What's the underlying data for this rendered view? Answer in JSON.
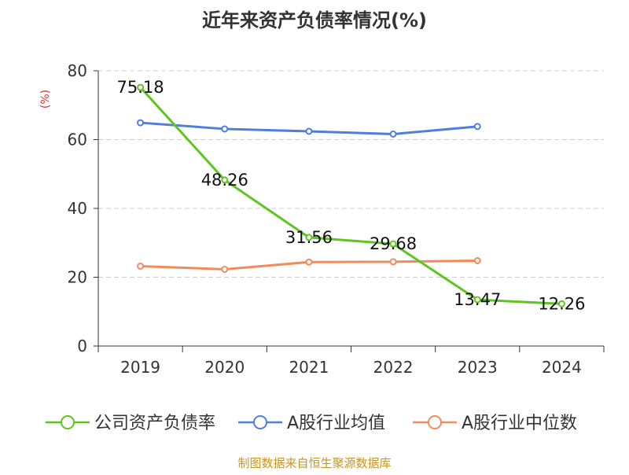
{
  "chart_data": {
    "type": "line",
    "title": "近年来资产负债率情况(%)",
    "ylabel": "(%)",
    "xlabel": "",
    "categories": [
      "2019",
      "2020",
      "2021",
      "2022",
      "2023",
      "2024"
    ],
    "ylim": [
      0,
      80
    ],
    "yticks": [
      0,
      20,
      40,
      60,
      80
    ],
    "grid": true,
    "legend_position": "bottom",
    "series": [
      {
        "name": "公司资产负债率",
        "color": "#5ec41f",
        "values": [
          75.18,
          48.26,
          31.56,
          29.68,
          13.47,
          12.26
        ],
        "labels": [
          "75.18",
          "48.26",
          "31.56",
          "29.68",
          "13.47",
          "12.26"
        ]
      },
      {
        "name": "A股行业均值",
        "color": "#4f7fdc",
        "values": [
          64.9,
          63.1,
          62.4,
          61.6,
          63.8,
          null
        ]
      },
      {
        "name": "A股行业中位数",
        "color": "#f28b5a",
        "values": [
          23.2,
          22.3,
          24.4,
          24.5,
          24.8,
          null
        ]
      }
    ]
  },
  "source_note": "制图数据来自恒生聚源数据库",
  "colors": {
    "title": "#333333",
    "axis_label": "#e03030",
    "source": "#c8941e",
    "grid": "#cccccc",
    "axis": "#333333"
  }
}
